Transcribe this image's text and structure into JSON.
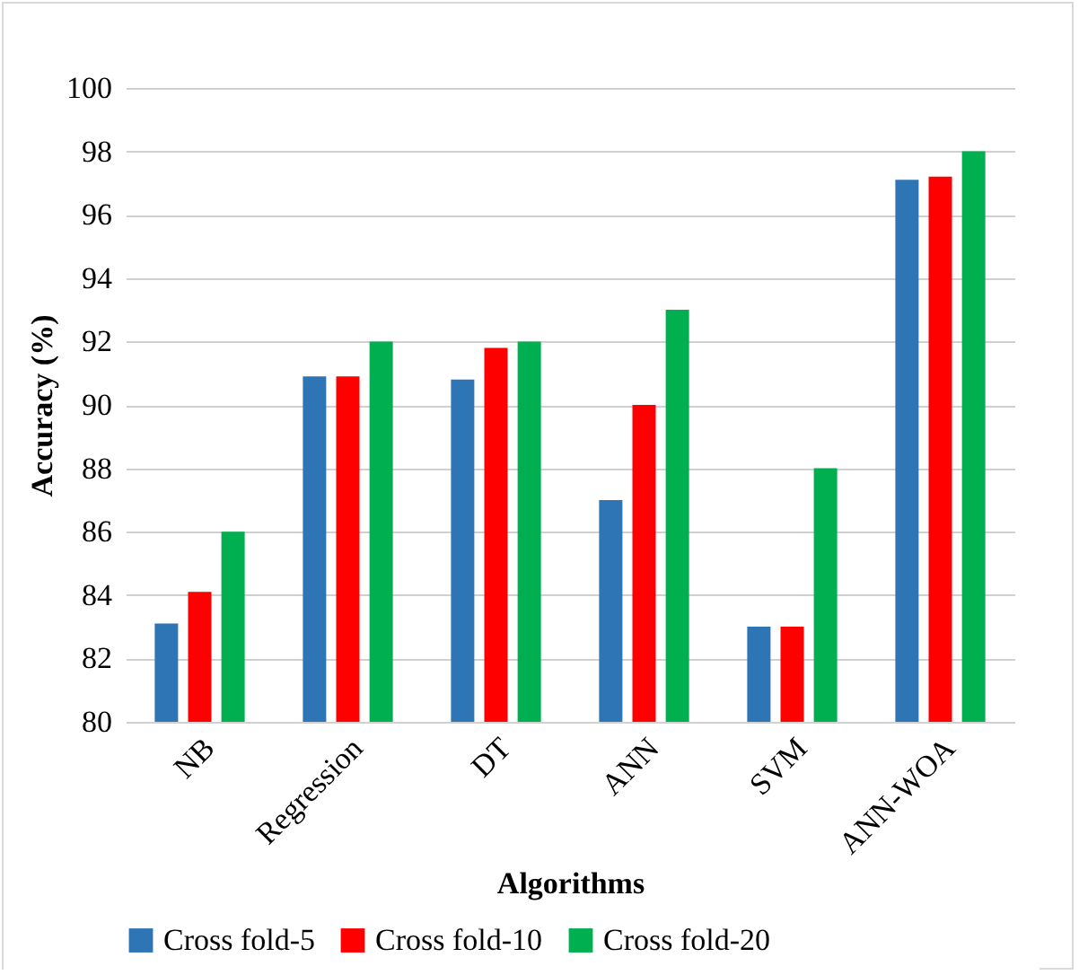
{
  "chart_data": {
    "type": "bar",
    "xlabel": "Algorithms",
    "ylabel": "Accuracy (%)",
    "categories": [
      "NB",
      "Regression",
      "DT",
      "ANN",
      "SVM",
      "ANN-WOA"
    ],
    "series": [
      {
        "name": "Cross fold-5",
        "color": "#2e75b6",
        "values": [
          83.1,
          90.9,
          90.8,
          87,
          83,
          97.1
        ]
      },
      {
        "name": "Cross fold-10",
        "color": "#ff0000",
        "values": [
          84.1,
          90.9,
          91.8,
          90,
          83,
          97.2
        ]
      },
      {
        "name": "Cross fold-20",
        "color": "#00b050",
        "values": [
          86,
          92,
          92,
          93,
          88,
          98
        ]
      }
    ],
    "ylim": [
      80,
      100
    ],
    "yticks": [
      80,
      82,
      84,
      86,
      88,
      90,
      92,
      94,
      96,
      98,
      100
    ],
    "grid": "y",
    "legend": "bottom"
  }
}
